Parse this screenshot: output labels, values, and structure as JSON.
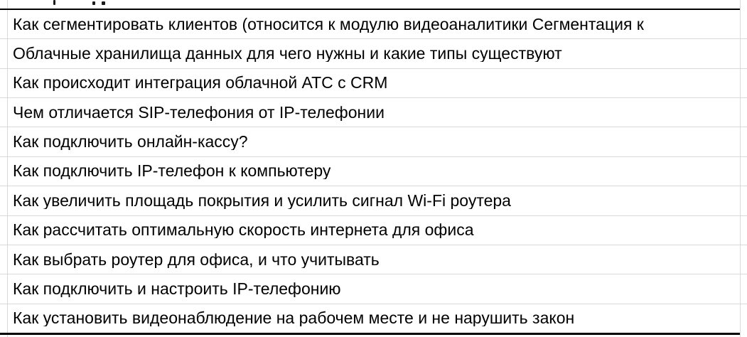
{
  "sheet": {
    "rows": [
      "Как сегментировать клиентов (относится к модулю видеоаналитики Сегментация к",
      "Облачные хранилища данных для чего нужны и какие типы существуют",
      "Как происходит интеграция облачной АТС с CRM",
      "Чем отличается SIP-телефония от IP-телефонии",
      "Как подключить онлайн-кассу?",
      "Как подключить IP-телефон к компьютеру",
      "Как увеличить площадь покрытия и усилить сигнал Wi-Fi роутера",
      "Как рассчитать оптимальную скорость интернета для офиса",
      "Как выбрать роутер для офиса, и что учитывать",
      "Как подключить и настроить IP-телефонию",
      "Как установить видеонаблюдение на рабочем месте и не нарушить закон"
    ],
    "colors": {
      "text": "#000000",
      "gridline": "#d9d9d9",
      "range_border": "#000000",
      "background": "#ffffff"
    }
  }
}
